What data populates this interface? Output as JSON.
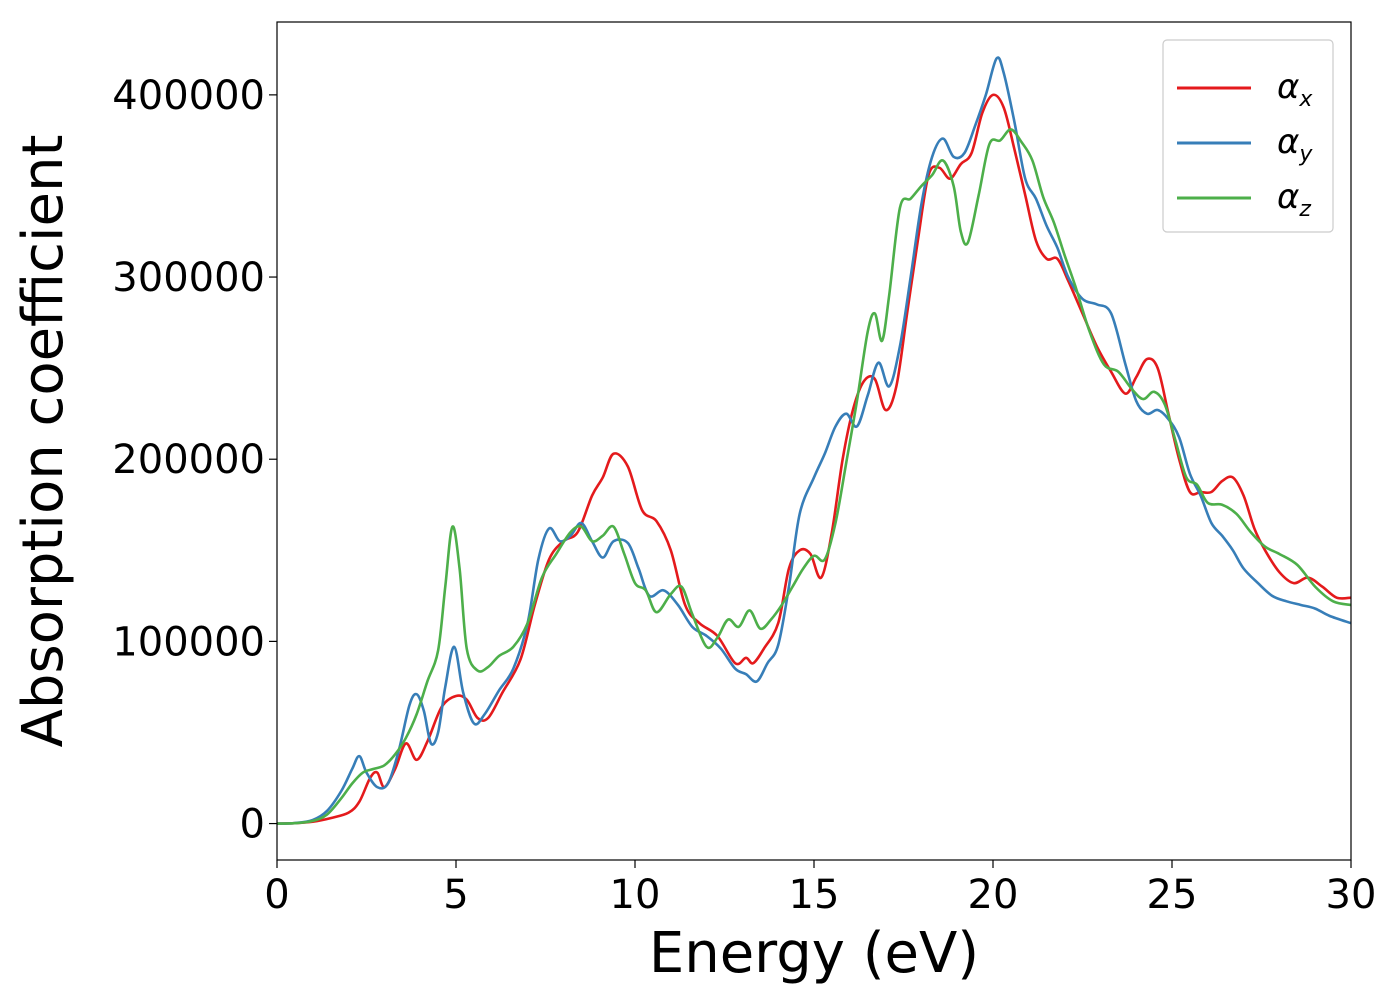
{
  "chart_data": {
    "type": "line",
    "xlabel": "Energy (eV)",
    "ylabel": "Absorption coefficient",
    "xlim": [
      0,
      30
    ],
    "ylim": [
      -20000,
      440000
    ],
    "xticks": [
      0,
      5,
      10,
      15,
      20,
      25,
      30
    ],
    "xtick_labels": [
      "0",
      "5",
      "10",
      "15",
      "20",
      "25",
      "30"
    ],
    "yticks": [
      0,
      100000,
      200000,
      300000,
      400000
    ],
    "ytick_labels": [
      "0",
      "100000",
      "200000",
      "300000",
      "400000"
    ],
    "grid": false,
    "legend_position": "top-right",
    "series": [
      {
        "name": "α",
        "subscript": "x",
        "color": "#e41a1c",
        "x": [
          0,
          0.5,
          1.0,
          1.5,
          2.0,
          2.3,
          2.6,
          2.8,
          3.0,
          3.3,
          3.6,
          3.9,
          4.2,
          4.6,
          5.0,
          5.3,
          5.6,
          5.9,
          6.3,
          6.8,
          7.2,
          7.6,
          8.0,
          8.4,
          8.8,
          9.1,
          9.4,
          9.8,
          10.2,
          10.6,
          11.0,
          11.4,
          11.8,
          12.3,
          12.8,
          13.1,
          13.3,
          13.6,
          14.0,
          14.3,
          14.6,
          14.9,
          15.2,
          15.5,
          15.8,
          16.1,
          16.4,
          16.7,
          17.0,
          17.3,
          17.6,
          17.9,
          18.2,
          18.5,
          18.8,
          19.1,
          19.4,
          19.7,
          20.0,
          20.3,
          20.6,
          20.9,
          21.2,
          21.5,
          21.8,
          22.1,
          22.5,
          22.9,
          23.3,
          23.7,
          24.0,
          24.3,
          24.6,
          24.9,
          25.2,
          25.5,
          25.8,
          26.1,
          26.4,
          26.7,
          27.0,
          27.3,
          27.6,
          28.0,
          28.4,
          28.8,
          29.2,
          29.6,
          30.0
        ],
        "y": [
          0,
          200,
          1000,
          3000,
          6000,
          12000,
          25000,
          28000,
          20000,
          30000,
          44000,
          35000,
          45000,
          64000,
          70000,
          68000,
          58000,
          58000,
          72000,
          90000,
          120000,
          145000,
          155000,
          160000,
          180000,
          190000,
          203000,
          196000,
          172000,
          166000,
          150000,
          120000,
          110000,
          103000,
          88000,
          91000,
          88000,
          96000,
          110000,
          140000,
          150000,
          148000,
          135000,
          160000,
          200000,
          228000,
          243000,
          244000,
          227000,
          240000,
          280000,
          320000,
          356000,
          360000,
          354000,
          362000,
          368000,
          390000,
          400000,
          393000,
          370000,
          345000,
          320000,
          310000,
          310000,
          298000,
          280000,
          262000,
          248000,
          236000,
          245000,
          255000,
          250000,
          225000,
          200000,
          182000,
          182000,
          182000,
          188000,
          190000,
          180000,
          162000,
          150000,
          138000,
          132000,
          135000,
          130000,
          124000,
          124000
        ]
      },
      {
        "name": "α",
        "subscript": "y",
        "color": "#377eb8",
        "x": [
          0,
          0.5,
          1.0,
          1.4,
          1.8,
          2.1,
          2.3,
          2.5,
          2.8,
          3.1,
          3.4,
          3.7,
          3.9,
          4.1,
          4.3,
          4.5,
          4.7,
          4.95,
          5.2,
          5.5,
          5.8,
          6.2,
          6.6,
          7.0,
          7.3,
          7.6,
          7.9,
          8.2,
          8.5,
          8.8,
          9.1,
          9.4,
          9.8,
          10.1,
          10.4,
          10.8,
          11.2,
          11.6,
          12.0,
          12.4,
          12.8,
          13.1,
          13.4,
          13.7,
          14.0,
          14.3,
          14.6,
          15.0,
          15.3,
          15.6,
          15.9,
          16.2,
          16.5,
          16.8,
          17.1,
          17.4,
          17.7,
          18.0,
          18.3,
          18.6,
          18.9,
          19.2,
          19.5,
          19.8,
          20.1,
          20.3,
          20.6,
          20.9,
          21.2,
          21.5,
          21.8,
          22.1,
          22.5,
          22.9,
          23.3,
          23.7,
          24.0,
          24.3,
          24.6,
          24.9,
          25.2,
          25.5,
          25.8,
          26.1,
          26.4,
          26.7,
          27.0,
          27.4,
          27.8,
          28.2,
          28.6,
          29.0,
          29.4,
          30.0
        ],
        "y": [
          0,
          300,
          2000,
          7000,
          18000,
          30000,
          37000,
          28000,
          20000,
          22000,
          40000,
          65000,
          71000,
          62000,
          44000,
          50000,
          75000,
          97000,
          72000,
          55000,
          60000,
          73000,
          85000,
          110000,
          145000,
          162000,
          155000,
          158000,
          165000,
          155000,
          146000,
          155000,
          154000,
          140000,
          125000,
          128000,
          120000,
          108000,
          103000,
          96000,
          85000,
          82000,
          78000,
          88000,
          98000,
          130000,
          170000,
          190000,
          203000,
          218000,
          225000,
          218000,
          235000,
          253000,
          240000,
          262000,
          300000,
          340000,
          366000,
          376000,
          366000,
          368000,
          383000,
          400000,
          420000,
          412000,
          385000,
          354000,
          343000,
          328000,
          316000,
          300000,
          288000,
          285000,
          280000,
          252000,
          232000,
          225000,
          227000,
          222000,
          212000,
          192000,
          180000,
          165000,
          158000,
          150000,
          140000,
          132000,
          125000,
          122000,
          120000,
          118000,
          114000,
          110000
        ]
      },
      {
        "name": "α",
        "subscript": "z",
        "color": "#4daf4a",
        "x": [
          0,
          0.5,
          1.0,
          1.4,
          1.8,
          2.1,
          2.4,
          2.7,
          3.0,
          3.3,
          3.6,
          3.9,
          4.2,
          4.5,
          4.7,
          4.9,
          5.1,
          5.3,
          5.6,
          5.9,
          6.2,
          6.6,
          7.0,
          7.4,
          7.8,
          8.2,
          8.5,
          8.8,
          9.1,
          9.4,
          9.7,
          10.0,
          10.3,
          10.6,
          11.0,
          11.3,
          11.6,
          12.0,
          12.3,
          12.6,
          12.9,
          13.2,
          13.5,
          13.8,
          14.1,
          14.4,
          14.7,
          15.0,
          15.3,
          15.6,
          15.9,
          16.2,
          16.5,
          16.7,
          16.9,
          17.1,
          17.4,
          17.7,
          18.0,
          18.3,
          18.6,
          18.9,
          19.1,
          19.3,
          19.6,
          19.9,
          20.2,
          20.5,
          20.8,
          21.1,
          21.4,
          21.7,
          22.0,
          22.3,
          22.7,
          23.1,
          23.5,
          23.9,
          24.2,
          24.5,
          24.8,
          25.1,
          25.4,
          25.7,
          26.0,
          26.4,
          26.8,
          27.2,
          27.6,
          28.0,
          28.5,
          29.0,
          29.5,
          30.0
        ],
        "y": [
          0,
          200,
          1500,
          5000,
          14000,
          22000,
          28000,
          30000,
          32000,
          38000,
          47000,
          60000,
          78000,
          95000,
          130000,
          163000,
          140000,
          96000,
          84000,
          86000,
          92000,
          97000,
          110000,
          135000,
          148000,
          160000,
          163000,
          155000,
          158000,
          163000,
          148000,
          132000,
          128000,
          116000,
          126000,
          130000,
          115000,
          97000,
          102000,
          112000,
          108000,
          117000,
          107000,
          112000,
          120000,
          130000,
          140000,
          147000,
          145000,
          165000,
          198000,
          232000,
          270000,
          280000,
          265000,
          290000,
          338000,
          343000,
          350000,
          356000,
          364000,
          350000,
          325000,
          319000,
          345000,
          373000,
          375000,
          381000,
          374000,
          364000,
          344000,
          330000,
          312000,
          295000,
          270000,
          252000,
          248000,
          238000,
          233000,
          237000,
          230000,
          210000,
          190000,
          186000,
          176000,
          175000,
          170000,
          160000,
          152000,
          148000,
          142000,
          130000,
          122000,
          120000
        ]
      }
    ]
  }
}
